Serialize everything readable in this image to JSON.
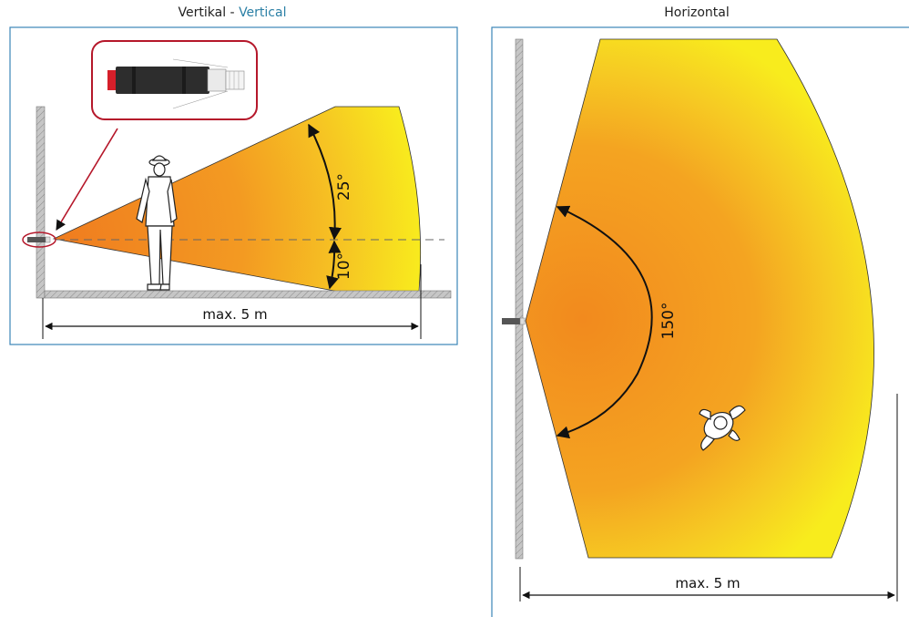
{
  "vertical": {
    "title_de": "Vertikal -",
    "title_en": "Vertical",
    "angle_upper": "25°",
    "angle_lower": "10°",
    "distance": "max. 5 m"
  },
  "horizontal": {
    "title": "Horizontal",
    "angle": "150°",
    "distance": "max. 5 m"
  },
  "colors": {
    "frame": "#3b86b8",
    "field_inner": "#f28a1e",
    "field_outer": "#f7ea1c",
    "wall": "#bfbfbf",
    "callout": "#b5172a"
  }
}
